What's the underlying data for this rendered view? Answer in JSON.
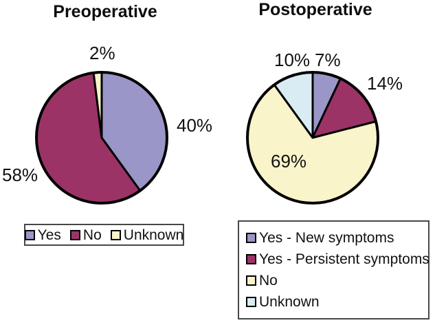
{
  "chart_data": [
    {
      "type": "pie",
      "title": "Preoperative",
      "start_angle_deg": 0,
      "direction": "clockwise",
      "legend_position": "bottom-horizontal",
      "slices": [
        {
          "label": "Yes",
          "value_pct": 40,
          "pct_label": "40%",
          "color": "#9A96C8"
        },
        {
          "label": "No",
          "value_pct": 58,
          "pct_label": "58%",
          "color": "#9C3367"
        },
        {
          "label": "Unknown",
          "value_pct": 2,
          "pct_label": "2%",
          "color": "#F9F4C9"
        }
      ]
    },
    {
      "type": "pie",
      "title": "Postoperative",
      "start_angle_deg": 0,
      "direction": "clockwise",
      "legend_position": "bottom-vertical",
      "slices": [
        {
          "label": "Yes - New symptoms",
          "value_pct": 7,
          "pct_label": "7%",
          "color": "#9A96C8"
        },
        {
          "label": "Yes - Persistent symptoms",
          "value_pct": 14,
          "pct_label": "14%",
          "color": "#9C3367"
        },
        {
          "label": "No",
          "value_pct": 69,
          "pct_label": "69%",
          "color": "#F9F4C9"
        },
        {
          "label": "Unknown",
          "value_pct": 10,
          "pct_label": "10%",
          "color": "#D9ECF4"
        }
      ]
    }
  ],
  "style": {
    "outline_color": "#000000",
    "background": "#ffffff"
  }
}
